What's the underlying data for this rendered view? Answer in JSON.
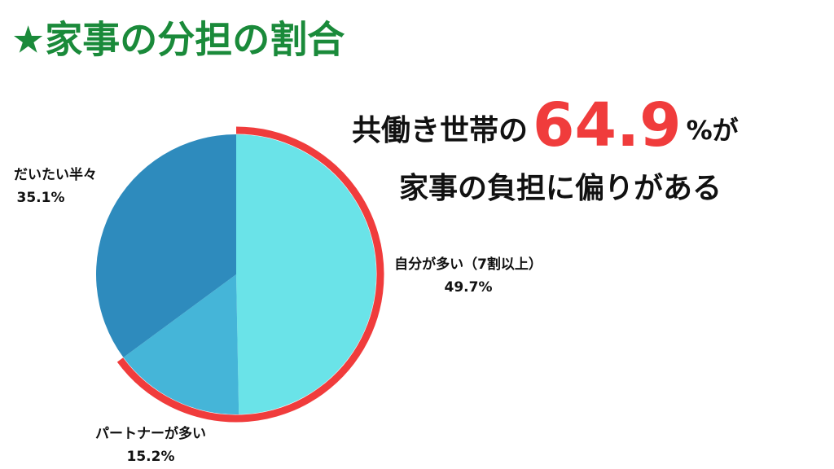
{
  "chart_data": {
    "type": "pie",
    "title": "★家事の分担の割合",
    "categories": [
      "自分が多い（7割以上）",
      "パートナーが多い",
      "だいたい半々"
    ],
    "values": [
      49.7,
      15.2,
      35.1
    ],
    "value_labels": [
      "49.7%",
      "15.2%",
      "35.1%"
    ],
    "colors": [
      "#6ae3e8",
      "#45b5d8",
      "#2e8bbd"
    ],
    "highlight_color": "#f03c3c",
    "callout": {
      "line1": [
        "共働き世帯の",
        "64.9",
        "%が"
      ],
      "line2": "家事の負担に偏りがある"
    }
  }
}
